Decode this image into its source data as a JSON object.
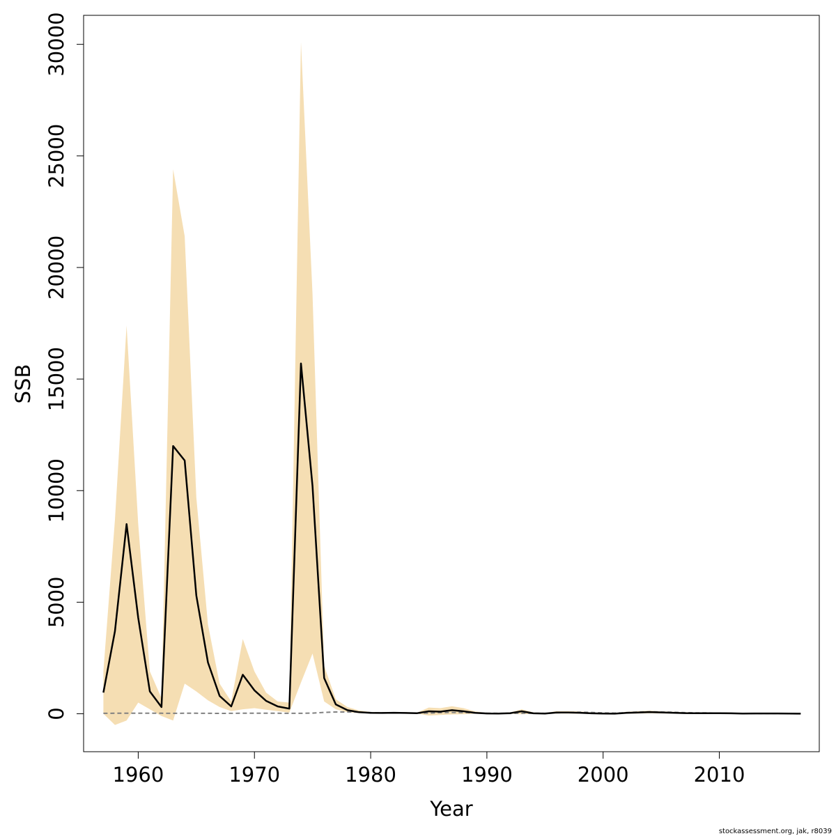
{
  "chart_data": {
    "type": "line",
    "title": "",
    "xlabel": "Year",
    "ylabel": "SSB",
    "xlim": [
      1955.3,
      2018.6
    ],
    "ylim": [
      -1700,
      31300
    ],
    "x_ticks": [
      1960,
      1970,
      1980,
      1990,
      2000,
      2010
    ],
    "y_ticks": [
      0,
      5000,
      10000,
      15000,
      20000,
      25000,
      30000
    ],
    "x_tick_labels": [
      "1960",
      "1970",
      "1980",
      "1990",
      "2000",
      "2010"
    ],
    "y_tick_labels": [
      "0",
      "5000",
      "10000",
      "15000",
      "20000",
      "25000",
      "30000"
    ],
    "grid": false,
    "colors": {
      "band": "#f5deb3",
      "line": "#000000",
      "reference": "#808080",
      "frame": "#000000"
    },
    "x": [
      1957,
      1958,
      1959,
      1960,
      1961,
      1962,
      1963,
      1964,
      1965,
      1966,
      1967,
      1968,
      1969,
      1970,
      1971,
      1972,
      1973,
      1974,
      1975,
      1976,
      1977,
      1978,
      1979,
      1980,
      1981,
      1982,
      1983,
      1984,
      1985,
      1986,
      1987,
      1988,
      1989,
      1990,
      1991,
      1992,
      1993,
      1994,
      1995,
      1996,
      1997,
      1998,
      1999,
      2000,
      2001,
      2002,
      2003,
      2004,
      2005,
      2006,
      2007,
      2008,
      2009,
      2010,
      2011,
      2012,
      2013,
      2014,
      2015,
      2016,
      2017
    ],
    "series": [
      {
        "type": "line",
        "values": [
          950,
          3700,
          8500,
          4300,
          1000,
          300,
          12000,
          11350,
          5300,
          2300,
          800,
          330,
          1750,
          1050,
          580,
          330,
          230,
          15700,
          10200,
          1600,
          420,
          160,
          70,
          40,
          35,
          45,
          35,
          25,
          110,
          95,
          160,
          110,
          40,
          15,
          10,
          25,
          110,
          20,
          10,
          55,
          55,
          45,
          20,
          10,
          5,
          40,
          55,
          75,
          60,
          45,
          30,
          25,
          25,
          25,
          20,
          10,
          15,
          15,
          15,
          10,
          5
        ]
      }
    ],
    "band": {
      "lower": [
        0,
        -500,
        -300,
        500,
        200,
        -100,
        -300,
        1350,
        1000,
        600,
        300,
        120,
        200,
        250,
        180,
        120,
        50,
        1400,
        2700,
        550,
        200,
        70,
        30,
        15,
        15,
        20,
        15,
        5,
        -80,
        -50,
        -30,
        -20,
        0,
        0,
        0,
        0,
        -20,
        0,
        0,
        10,
        10,
        5,
        0,
        0,
        0,
        5,
        10,
        20,
        15,
        10,
        5,
        5,
        5,
        5,
        5,
        0,
        0,
        0,
        0,
        5,
        5
      ],
      "upper": [
        1900,
        8700,
        17400,
        8500,
        1900,
        700,
        24400,
        21400,
        9700,
        4000,
        1350,
        550,
        3350,
        1900,
        950,
        550,
        500,
        30100,
        18800,
        2150,
        650,
        300,
        150,
        80,
        70,
        80,
        70,
        50,
        280,
        250,
        340,
        250,
        100,
        40,
        30,
        60,
        200,
        60,
        30,
        120,
        120,
        100,
        60,
        30,
        20,
        90,
        120,
        140,
        110,
        90,
        70,
        60,
        60,
        60,
        50,
        30,
        40,
        40,
        40,
        20,
        10
      ]
    },
    "reference": {
      "values": [
        20,
        22,
        25,
        25,
        25,
        22,
        20,
        22,
        22,
        20,
        18,
        20,
        25,
        28,
        25,
        22,
        20,
        20,
        30,
        60,
        80,
        80,
        70,
        50,
        40,
        40,
        35,
        30,
        30,
        50,
        60,
        50,
        40,
        30,
        20,
        15,
        25,
        20,
        20,
        40,
        60,
        70,
        60,
        40,
        30,
        50,
        80,
        90,
        80,
        70,
        50,
        40,
        40,
        30,
        20,
        15,
        15,
        15,
        15,
        10,
        5
      ]
    },
    "credit": "stockassessment.org, jak, r8039"
  }
}
